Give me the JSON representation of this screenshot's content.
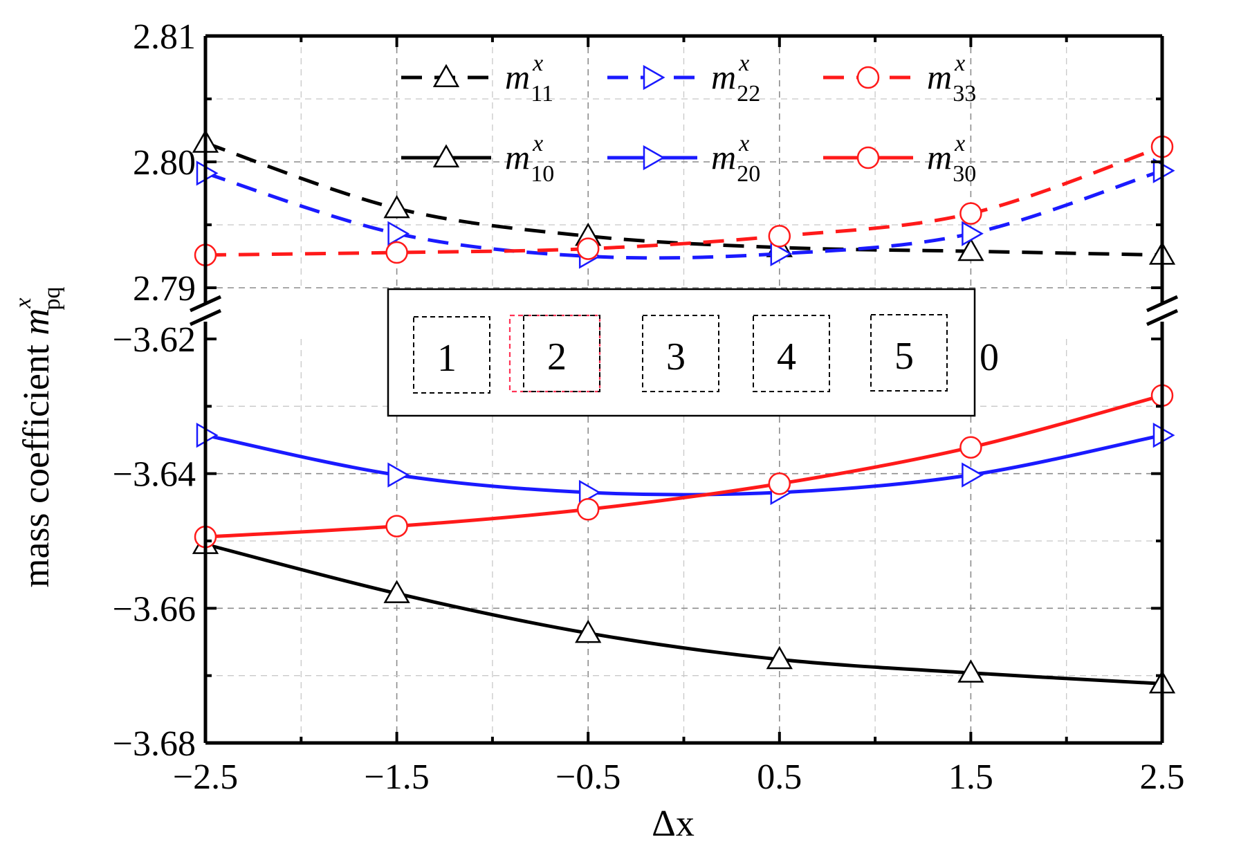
{
  "chart_data": {
    "type": "line",
    "xlabel": "Δx",
    "ylabel": {
      "text": "mass coefficient ",
      "sym": "m",
      "sup": "x",
      "sub": "pq"
    },
    "x": [
      -2.5,
      -1.5,
      -0.5,
      0.5,
      1.5,
      2.5
    ],
    "xticks": [
      "−2.5",
      "−1.5",
      "−0.5",
      "0.5",
      "1.5",
      "2.5"
    ],
    "xlim": [
      -2.5,
      2.5
    ],
    "axis_break": true,
    "upper_panel": {
      "ylim": [
        2.79,
        2.81
      ],
      "yticks": [
        2.79,
        2.8,
        2.81
      ],
      "ytick_labels": [
        "2.79",
        "2.80",
        "2.81"
      ]
    },
    "lower_panel": {
      "ylim": [
        -3.68,
        -3.62
      ],
      "yticks": [
        -3.68,
        -3.66,
        -3.64,
        -3.62
      ],
      "ytick_labels": [
        "−3.68",
        "−3.66",
        "−3.64",
        "−3.62"
      ]
    },
    "grid": true,
    "legend_position": "top",
    "series": [
      {
        "name": "m_11^x",
        "sym": "m",
        "sup": "x",
        "sub": "11",
        "panel": "upper",
        "style": "dashed",
        "color": "#000000",
        "marker": "triangle-up",
        "values": [
          2.8015,
          2.7963,
          2.7941,
          2.7932,
          2.7929,
          2.7926
        ]
      },
      {
        "name": "m_22^x",
        "sym": "m",
        "sup": "x",
        "sub": "22",
        "panel": "upper",
        "style": "dashed",
        "color": "#1a1aff",
        "marker": "triangle-right",
        "values": [
          2.7991,
          2.7943,
          2.7925,
          2.7927,
          2.7943,
          2.7993
        ]
      },
      {
        "name": "m_33^x",
        "sym": "m",
        "sup": "x",
        "sub": "33",
        "panel": "upper",
        "style": "dashed",
        "color": "#ff1a1a",
        "marker": "circle",
        "values": [
          2.7926,
          2.7928,
          2.7931,
          2.7941,
          2.7959,
          2.8012
        ]
      },
      {
        "name": "m_10^x",
        "sym": "m",
        "sup": "x",
        "sub": "10",
        "panel": "lower",
        "style": "solid",
        "color": "#000000",
        "marker": "triangle-up",
        "values": [
          -3.6505,
          -3.6578,
          -3.6637,
          -3.6676,
          -3.6696,
          -3.6712
        ]
      },
      {
        "name": "m_20^x",
        "sym": "m",
        "sup": "x",
        "sub": "20",
        "panel": "lower",
        "style": "solid",
        "color": "#1a1aff",
        "marker": "triangle-right",
        "values": [
          -3.6343,
          -3.6402,
          -3.6428,
          -3.6428,
          -3.6402,
          -3.6343
        ]
      },
      {
        "name": "m_30^x",
        "sym": "m",
        "sup": "x",
        "sub": "30",
        "panel": "lower",
        "style": "solid",
        "color": "#ff1a1a",
        "marker": "circle",
        "values": [
          -3.6494,
          -3.6478,
          -3.6453,
          -3.6415,
          -3.6361,
          -3.6284
        ]
      }
    ],
    "inset": {
      "labels": [
        "1",
        "2",
        "3",
        "4",
        "5"
      ],
      "trailing_label": "0"
    }
  }
}
